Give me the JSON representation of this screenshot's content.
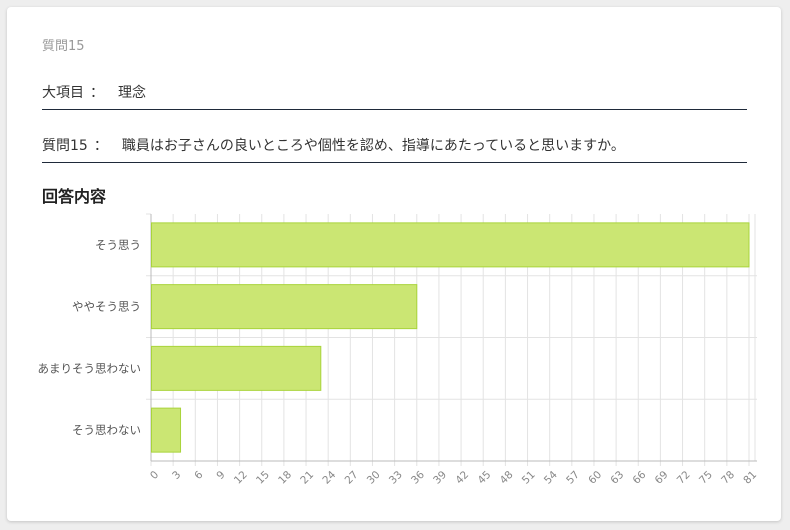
{
  "header": {
    "question_header": "質問15"
  },
  "category": {
    "label": "大項目",
    "separator": "：",
    "value": "理念"
  },
  "question": {
    "label": "質問15",
    "separator": "：",
    "text": "職員はお子さんの良いところや個性を認め、指導にあたっていると思いますか。"
  },
  "answers_title": "回答内容",
  "colors": {
    "bar_fill": "#cbe673",
    "bar_stroke": "#a9d43b",
    "grid": "#e3e3e3",
    "axis": "#bbbbbb",
    "tick_text": "#888888",
    "label_text": "#555555"
  },
  "chart_data": {
    "type": "bar",
    "orientation": "horizontal",
    "categories": [
      "そう思う",
      "ややそう思う",
      "あまりそう思わない",
      "そう思わない"
    ],
    "values": [
      81,
      36,
      23,
      4
    ],
    "xlim": [
      0,
      81
    ],
    "x_ticks": [
      0,
      3,
      6,
      9,
      12,
      15,
      18,
      21,
      24,
      27,
      30,
      33,
      36,
      39,
      42,
      45,
      48,
      51,
      54,
      57,
      60,
      63,
      66,
      69,
      72,
      75,
      78,
      81
    ],
    "grid": true,
    "title": "",
    "xlabel": "",
    "ylabel": ""
  }
}
